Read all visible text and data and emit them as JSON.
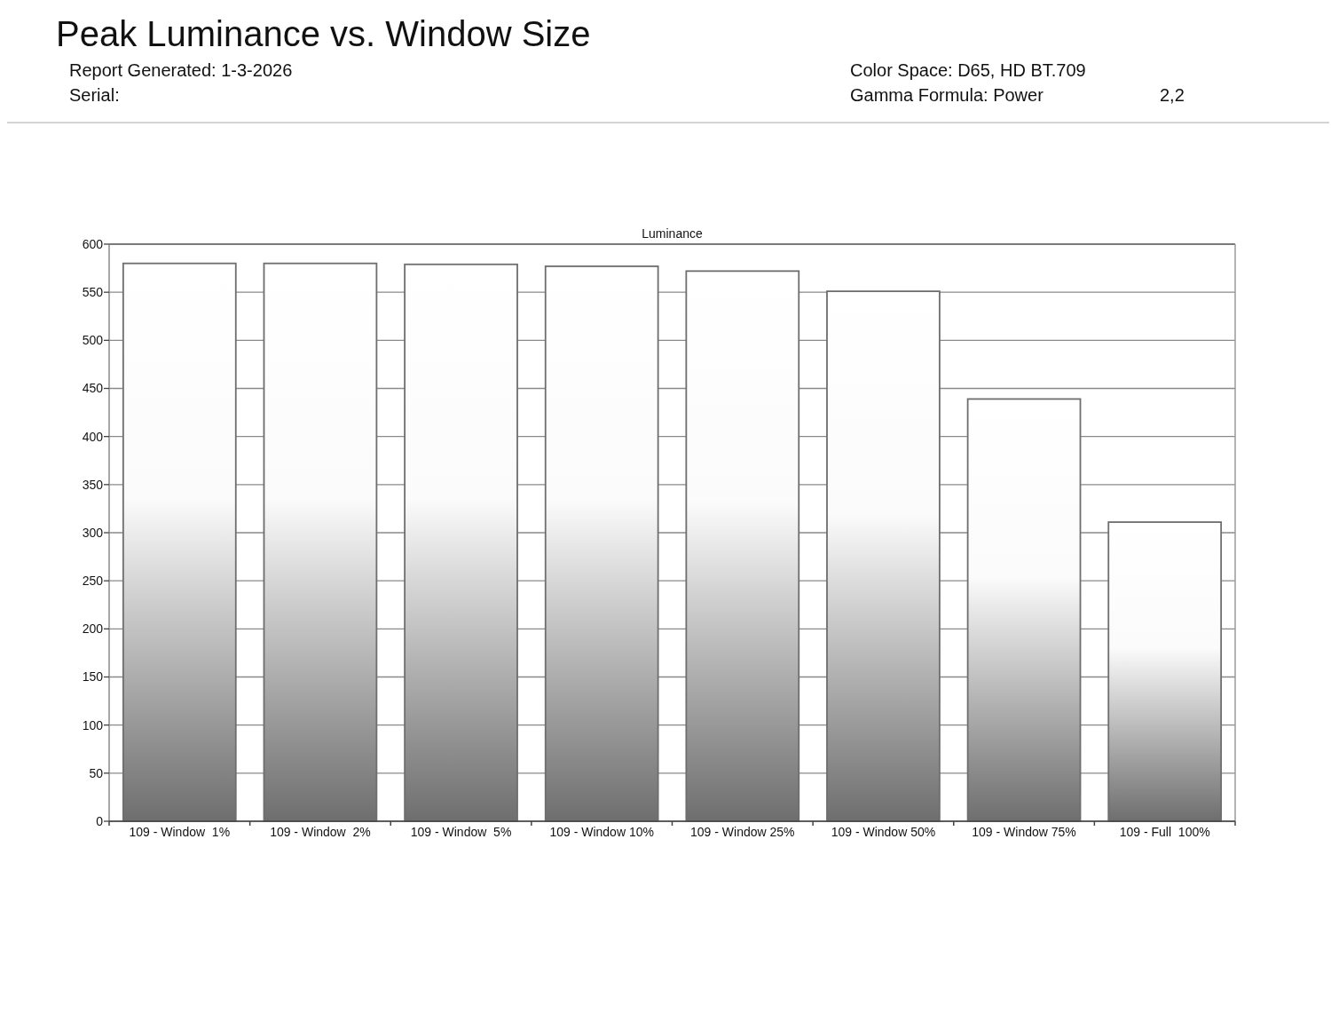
{
  "chart_data": {
    "type": "bar",
    "title": "Peak Luminance vs. Window Size",
    "subtitle": "Luminance",
    "annotations": [
      "Report Generated: 1-3-2026",
      "Color Space: D65, HD BT.709",
      "Serial:",
      "Gamma Formula: Power",
      "2,2"
    ],
    "categories": [
      "109 - Window  1%",
      "109 - Window  2%",
      "109 - Window  5%",
      "109 - Window 10%",
      "109 - Window 25%",
      "109 - Window 50%",
      "109 - Window 75%",
      "109 - Full  100%"
    ],
    "values": [
      580,
      580,
      579,
      577,
      572,
      551,
      439,
      311
    ],
    "color": "#6e6e6e",
    "ylim": [
      0,
      600
    ],
    "yticks": [
      0,
      50,
      100,
      150,
      200,
      250,
      300,
      350,
      400,
      450,
      500,
      550,
      600
    ],
    "grid": "y"
  }
}
